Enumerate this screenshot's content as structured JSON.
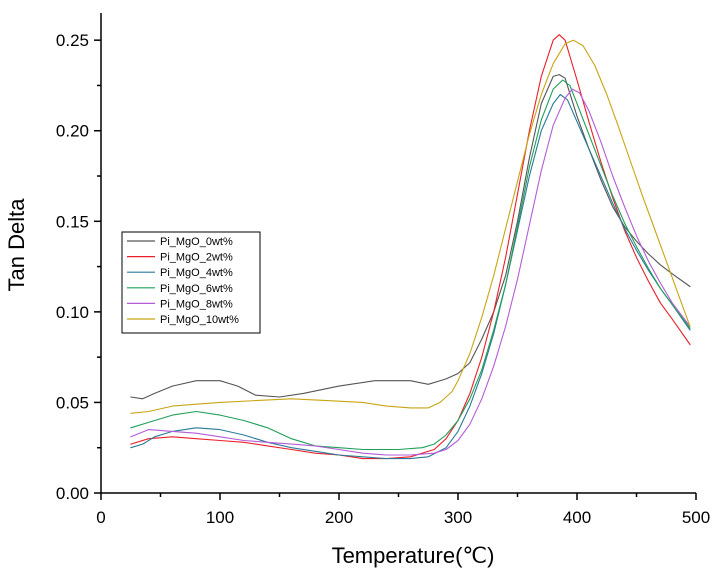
{
  "chart_data": {
    "type": "line",
    "title": "",
    "xlabel": "Temperature(℃)",
    "ylabel": "Tan Delta",
    "xlim": [
      0,
      500
    ],
    "ylim": [
      0,
      0.265
    ],
    "x_ticks": [
      0,
      100,
      200,
      300,
      400,
      500
    ],
    "x_tick_labels": [
      "0",
      "100",
      "200",
      "300",
      "400",
      "500"
    ],
    "y_ticks": [
      0.0,
      0.05,
      0.1,
      0.15,
      0.2,
      0.25
    ],
    "y_tick_labels": [
      "0.00",
      "0.05",
      "0.10",
      "0.15",
      "0.20",
      "0.25"
    ],
    "grid": false,
    "legend_position": "middle-left",
    "series": [
      {
        "name": "Pi_MgO_0wt%",
        "color": "#555555",
        "points": [
          [
            25,
            0.053
          ],
          [
            35,
            0.052
          ],
          [
            45,
            0.055
          ],
          [
            60,
            0.059
          ],
          [
            80,
            0.062
          ],
          [
            100,
            0.062
          ],
          [
            115,
            0.059
          ],
          [
            130,
            0.054
          ],
          [
            150,
            0.053
          ],
          [
            170,
            0.055
          ],
          [
            200,
            0.059
          ],
          [
            230,
            0.062
          ],
          [
            260,
            0.062
          ],
          [
            275,
            0.06
          ],
          [
            290,
            0.063
          ],
          [
            300,
            0.066
          ],
          [
            310,
            0.072
          ],
          [
            320,
            0.085
          ],
          [
            330,
            0.1
          ],
          [
            340,
            0.12
          ],
          [
            350,
            0.15
          ],
          [
            360,
            0.185
          ],
          [
            370,
            0.215
          ],
          [
            380,
            0.23
          ],
          [
            385,
            0.231
          ],
          [
            390,
            0.229
          ],
          [
            400,
            0.208
          ],
          [
            410,
            0.19
          ],
          [
            420,
            0.173
          ],
          [
            430,
            0.158
          ],
          [
            440,
            0.147
          ],
          [
            450,
            0.139
          ],
          [
            460,
            0.132
          ],
          [
            470,
            0.126
          ],
          [
            480,
            0.121
          ],
          [
            495,
            0.114
          ]
        ]
      },
      {
        "name": "Pi_MgO_2wt%",
        "color": "#e8202a",
        "points": [
          [
            25,
            0.027
          ],
          [
            40,
            0.03
          ],
          [
            60,
            0.031
          ],
          [
            80,
            0.03
          ],
          [
            100,
            0.029
          ],
          [
            120,
            0.028
          ],
          [
            140,
            0.026
          ],
          [
            160,
            0.024
          ],
          [
            180,
            0.022
          ],
          [
            200,
            0.021
          ],
          [
            220,
            0.019
          ],
          [
            240,
            0.019
          ],
          [
            260,
            0.02
          ],
          [
            280,
            0.024
          ],
          [
            290,
            0.03
          ],
          [
            300,
            0.04
          ],
          [
            310,
            0.055
          ],
          [
            320,
            0.075
          ],
          [
            330,
            0.1
          ],
          [
            340,
            0.13
          ],
          [
            350,
            0.165
          ],
          [
            360,
            0.2
          ],
          [
            370,
            0.23
          ],
          [
            380,
            0.25
          ],
          [
            385,
            0.253
          ],
          [
            390,
            0.25
          ],
          [
            400,
            0.228
          ],
          [
            410,
            0.205
          ],
          [
            420,
            0.183
          ],
          [
            430,
            0.163
          ],
          [
            440,
            0.145
          ],
          [
            450,
            0.13
          ],
          [
            460,
            0.117
          ],
          [
            470,
            0.105
          ],
          [
            480,
            0.096
          ],
          [
            495,
            0.082
          ]
        ]
      },
      {
        "name": "Pi_MgO_4wt%",
        "color": "#2a7a99",
        "points": [
          [
            25,
            0.025
          ],
          [
            35,
            0.027
          ],
          [
            45,
            0.031
          ],
          [
            60,
            0.034
          ],
          [
            80,
            0.036
          ],
          [
            100,
            0.035
          ],
          [
            120,
            0.032
          ],
          [
            140,
            0.028
          ],
          [
            160,
            0.025
          ],
          [
            180,
            0.023
          ],
          [
            200,
            0.021
          ],
          [
            220,
            0.02
          ],
          [
            240,
            0.019
          ],
          [
            260,
            0.019
          ],
          [
            275,
            0.02
          ],
          [
            290,
            0.025
          ],
          [
            300,
            0.034
          ],
          [
            310,
            0.048
          ],
          [
            320,
            0.066
          ],
          [
            330,
            0.088
          ],
          [
            340,
            0.115
          ],
          [
            350,
            0.145
          ],
          [
            360,
            0.175
          ],
          [
            370,
            0.2
          ],
          [
            380,
            0.215
          ],
          [
            386,
            0.22
          ],
          [
            392,
            0.217
          ],
          [
            400,
            0.205
          ],
          [
            410,
            0.19
          ],
          [
            420,
            0.175
          ],
          [
            430,
            0.16
          ],
          [
            440,
            0.146
          ],
          [
            450,
            0.134
          ],
          [
            460,
            0.123
          ],
          [
            470,
            0.113
          ],
          [
            480,
            0.104
          ],
          [
            495,
            0.09
          ]
        ]
      },
      {
        "name": "Pi_MgO_6wt%",
        "color": "#1e9f58",
        "points": [
          [
            25,
            0.036
          ],
          [
            40,
            0.039
          ],
          [
            60,
            0.043
          ],
          [
            80,
            0.045
          ],
          [
            100,
            0.043
          ],
          [
            120,
            0.04
          ],
          [
            140,
            0.036
          ],
          [
            160,
            0.03
          ],
          [
            180,
            0.026
          ],
          [
            200,
            0.025
          ],
          [
            220,
            0.024
          ],
          [
            250,
            0.024
          ],
          [
            270,
            0.025
          ],
          [
            280,
            0.027
          ],
          [
            290,
            0.032
          ],
          [
            300,
            0.04
          ],
          [
            310,
            0.052
          ],
          [
            320,
            0.068
          ],
          [
            330,
            0.09
          ],
          [
            340,
            0.115
          ],
          [
            350,
            0.147
          ],
          [
            360,
            0.18
          ],
          [
            370,
            0.206
          ],
          [
            380,
            0.223
          ],
          [
            388,
            0.228
          ],
          [
            394,
            0.225
          ],
          [
            400,
            0.215
          ],
          [
            410,
            0.198
          ],
          [
            420,
            0.181
          ],
          [
            430,
            0.164
          ],
          [
            440,
            0.149
          ],
          [
            450,
            0.136
          ],
          [
            460,
            0.124
          ],
          [
            470,
            0.113
          ],
          [
            480,
            0.104
          ],
          [
            495,
            0.091
          ]
        ]
      },
      {
        "name": "Pi_MgO_8wt%",
        "color": "#b45cd6",
        "points": [
          [
            25,
            0.031
          ],
          [
            40,
            0.035
          ],
          [
            60,
            0.034
          ],
          [
            80,
            0.033
          ],
          [
            100,
            0.031
          ],
          [
            120,
            0.029
          ],
          [
            140,
            0.028
          ],
          [
            160,
            0.027
          ],
          [
            180,
            0.026
          ],
          [
            200,
            0.024
          ],
          [
            220,
            0.022
          ],
          [
            240,
            0.021
          ],
          [
            260,
            0.021
          ],
          [
            280,
            0.022
          ],
          [
            290,
            0.024
          ],
          [
            300,
            0.029
          ],
          [
            310,
            0.038
          ],
          [
            320,
            0.052
          ],
          [
            330,
            0.07
          ],
          [
            340,
            0.092
          ],
          [
            350,
            0.118
          ],
          [
            360,
            0.148
          ],
          [
            370,
            0.178
          ],
          [
            380,
            0.203
          ],
          [
            390,
            0.218
          ],
          [
            396,
            0.223
          ],
          [
            402,
            0.221
          ],
          [
            410,
            0.211
          ],
          [
            420,
            0.194
          ],
          [
            430,
            0.175
          ],
          [
            440,
            0.158
          ],
          [
            450,
            0.142
          ],
          [
            460,
            0.128
          ],
          [
            470,
            0.116
          ],
          [
            480,
            0.105
          ],
          [
            495,
            0.092
          ]
        ]
      },
      {
        "name": "Pi_MgO_10wt%",
        "color": "#c8a414",
        "points": [
          [
            25,
            0.044
          ],
          [
            40,
            0.045
          ],
          [
            60,
            0.048
          ],
          [
            80,
            0.049
          ],
          [
            100,
            0.05
          ],
          [
            130,
            0.051
          ],
          [
            160,
            0.052
          ],
          [
            190,
            0.051
          ],
          [
            220,
            0.05
          ],
          [
            240,
            0.048
          ],
          [
            260,
            0.047
          ],
          [
            275,
            0.047
          ],
          [
            285,
            0.05
          ],
          [
            295,
            0.056
          ],
          [
            300,
            0.062
          ],
          [
            310,
            0.077
          ],
          [
            320,
            0.097
          ],
          [
            330,
            0.12
          ],
          [
            340,
            0.146
          ],
          [
            350,
            0.172
          ],
          [
            360,
            0.198
          ],
          [
            370,
            0.22
          ],
          [
            380,
            0.237
          ],
          [
            390,
            0.248
          ],
          [
            397,
            0.25
          ],
          [
            405,
            0.247
          ],
          [
            415,
            0.236
          ],
          [
            425,
            0.22
          ],
          [
            435,
            0.202
          ],
          [
            445,
            0.183
          ],
          [
            455,
            0.164
          ],
          [
            465,
            0.146
          ],
          [
            475,
            0.128
          ],
          [
            485,
            0.11
          ],
          [
            495,
            0.092
          ]
        ]
      }
    ]
  }
}
